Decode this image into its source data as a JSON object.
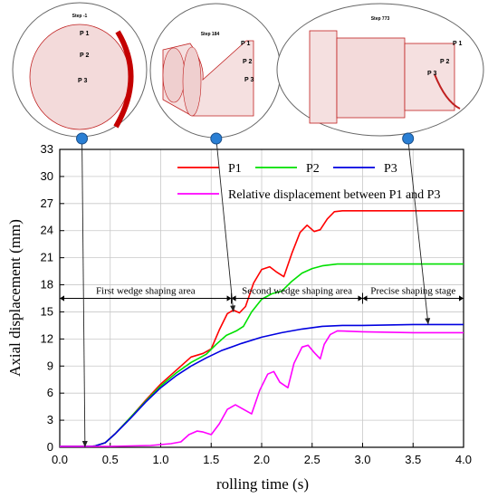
{
  "chart_data": {
    "type": "line",
    "xlabel": "rolling time (s)",
    "ylabel": "Axial displacement (mm)",
    "xlim": [
      0,
      4
    ],
    "ylim": [
      0,
      33
    ],
    "xticks": [
      "0.0",
      "0.5",
      "1.0",
      "1.5",
      "2.0",
      "2.5",
      "3.0",
      "3.5",
      "4.0"
    ],
    "yticks": [
      "0",
      "3",
      "6",
      "9",
      "12",
      "15",
      "18",
      "21",
      "24",
      "27",
      "30",
      "33"
    ],
    "grid": true,
    "legend_position": "top-right",
    "series": [
      {
        "name": "P1",
        "color": "#ff0000",
        "points": [
          [
            0.0,
            0.1
          ],
          [
            0.3,
            0.1
          ],
          [
            0.35,
            0.15
          ],
          [
            0.45,
            0.5
          ],
          [
            0.55,
            1.5
          ],
          [
            0.7,
            3.3
          ],
          [
            0.85,
            5.2
          ],
          [
            1.0,
            7.0
          ],
          [
            1.15,
            8.5
          ],
          [
            1.3,
            10.0
          ],
          [
            1.42,
            10.4
          ],
          [
            1.5,
            10.9
          ],
          [
            1.58,
            13.0
          ],
          [
            1.66,
            14.8
          ],
          [
            1.72,
            15.2
          ],
          [
            1.78,
            14.9
          ],
          [
            1.84,
            15.6
          ],
          [
            1.92,
            18.2
          ],
          [
            2.0,
            19.7
          ],
          [
            2.08,
            20.0
          ],
          [
            2.15,
            19.4
          ],
          [
            2.22,
            18.9
          ],
          [
            2.3,
            21.5
          ],
          [
            2.38,
            23.8
          ],
          [
            2.45,
            24.6
          ],
          [
            2.52,
            23.9
          ],
          [
            2.58,
            24.1
          ],
          [
            2.65,
            25.3
          ],
          [
            2.72,
            26.1
          ],
          [
            2.8,
            26.2
          ],
          [
            3.0,
            26.2
          ],
          [
            4.0,
            26.2
          ]
        ]
      },
      {
        "name": "P2",
        "color": "#00e000",
        "points": [
          [
            0.0,
            0.1
          ],
          [
            0.3,
            0.1
          ],
          [
            0.35,
            0.15
          ],
          [
            0.45,
            0.5
          ],
          [
            0.55,
            1.5
          ],
          [
            0.7,
            3.3
          ],
          [
            0.85,
            5.1
          ],
          [
            1.0,
            6.8
          ],
          [
            1.15,
            8.2
          ],
          [
            1.3,
            9.4
          ],
          [
            1.45,
            10.3
          ],
          [
            1.55,
            11.4
          ],
          [
            1.65,
            12.4
          ],
          [
            1.75,
            12.9
          ],
          [
            1.82,
            13.4
          ],
          [
            1.9,
            15.0
          ],
          [
            2.0,
            16.4
          ],
          [
            2.1,
            17.0
          ],
          [
            2.2,
            17.3
          ],
          [
            2.3,
            18.4
          ],
          [
            2.4,
            19.3
          ],
          [
            2.5,
            19.8
          ],
          [
            2.6,
            20.1
          ],
          [
            2.75,
            20.3
          ],
          [
            3.0,
            20.3
          ],
          [
            4.0,
            20.3
          ]
        ]
      },
      {
        "name": "P3",
        "color": "#0000e0",
        "points": [
          [
            0.0,
            0.1
          ],
          [
            0.3,
            0.1
          ],
          [
            0.35,
            0.15
          ],
          [
            0.45,
            0.5
          ],
          [
            0.55,
            1.5
          ],
          [
            0.7,
            3.2
          ],
          [
            0.85,
            5.0
          ],
          [
            1.0,
            6.6
          ],
          [
            1.15,
            7.9
          ],
          [
            1.3,
            9.0
          ],
          [
            1.45,
            9.9
          ],
          [
            1.6,
            10.7
          ],
          [
            1.8,
            11.5
          ],
          [
            2.0,
            12.2
          ],
          [
            2.2,
            12.7
          ],
          [
            2.4,
            13.1
          ],
          [
            2.6,
            13.4
          ],
          [
            2.8,
            13.5
          ],
          [
            3.0,
            13.5
          ],
          [
            3.5,
            13.6
          ],
          [
            4.0,
            13.6
          ]
        ]
      },
      {
        "name": "Relative displacement between P1 and P3",
        "color": "#ff00ff",
        "points": [
          [
            0.0,
            0.1
          ],
          [
            0.5,
            0.1
          ],
          [
            0.9,
            0.2
          ],
          [
            1.1,
            0.4
          ],
          [
            1.2,
            0.6
          ],
          [
            1.28,
            1.4
          ],
          [
            1.36,
            1.8
          ],
          [
            1.42,
            1.7
          ],
          [
            1.5,
            1.4
          ],
          [
            1.58,
            2.6
          ],
          [
            1.66,
            4.2
          ],
          [
            1.74,
            4.7
          ],
          [
            1.82,
            4.2
          ],
          [
            1.9,
            3.7
          ],
          [
            1.98,
            6.3
          ],
          [
            2.06,
            8.1
          ],
          [
            2.12,
            8.4
          ],
          [
            2.18,
            7.2
          ],
          [
            2.26,
            6.6
          ],
          [
            2.32,
            9.3
          ],
          [
            2.4,
            11.1
          ],
          [
            2.46,
            11.3
          ],
          [
            2.52,
            10.5
          ],
          [
            2.58,
            9.8
          ],
          [
            2.62,
            11.4
          ],
          [
            2.68,
            12.5
          ],
          [
            2.75,
            12.9
          ],
          [
            3.0,
            12.8
          ],
          [
            3.5,
            12.7
          ],
          [
            4.0,
            12.7
          ]
        ]
      }
    ],
    "annotations": [
      {
        "label": "First wedge shaping area",
        "x_start": 0.0,
        "x_end": 1.7,
        "y": 16.5
      },
      {
        "label": "Second wedge shaping area",
        "x_start": 1.7,
        "x_end": 3.0,
        "y": 16.5
      },
      {
        "label": "Precise shaping stage",
        "x_start": 3.0,
        "x_end": 4.0,
        "y": 16.5
      }
    ],
    "arrows": [
      {
        "from_x": 0.22,
        "to_x": 0.25,
        "to_y": 0.0
      },
      {
        "from_x": 1.55,
        "to_x": 1.72,
        "to_y": 15.0
      },
      {
        "from_x": 3.45,
        "to_x": 3.65,
        "to_y": 13.6
      }
    ]
  },
  "insets": [
    {
      "title": "Step -1",
      "points": [
        "P 1",
        "P 2",
        "P 3"
      ]
    },
    {
      "title": "Step 184",
      "points": [
        "P 1",
        "P 2",
        "P 3"
      ]
    },
    {
      "title": "Step 773",
      "points": [
        "P 1",
        "P 2",
        "P 3"
      ]
    }
  ],
  "colors": {
    "mesh": "#d42020",
    "marker": "#2a7fd4"
  }
}
